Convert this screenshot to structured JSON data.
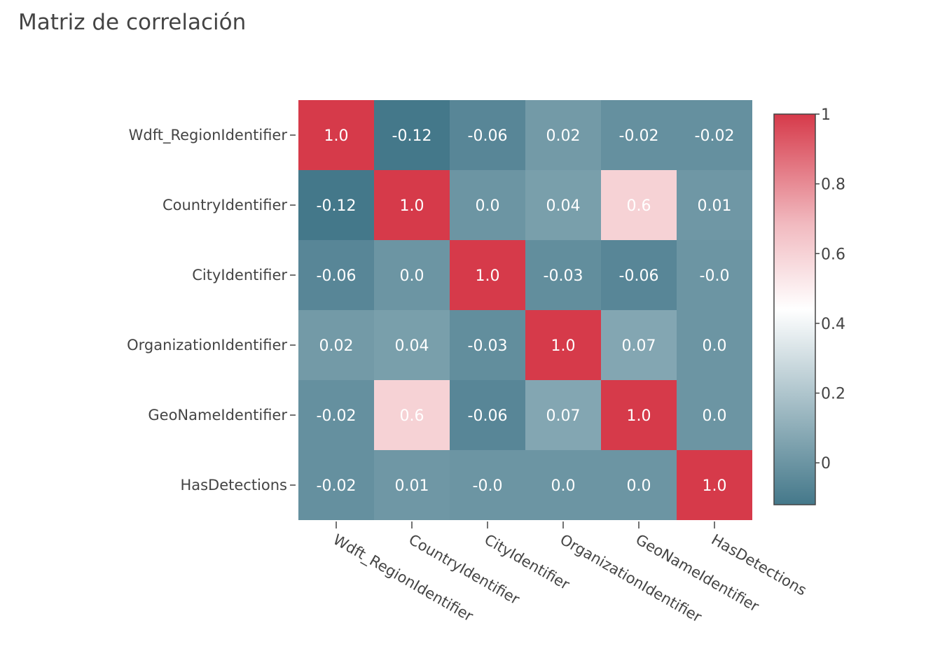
{
  "chart_data": {
    "type": "heatmap",
    "title": "Matriz de correlación",
    "x_categories": [
      "Wdft_RegionIdentifier",
      "CountryIdentifier",
      "CityIdentifier",
      "OrganizationIdentifier",
      "GeoNameIdentifier",
      "HasDetections"
    ],
    "y_categories": [
      "Wdft_RegionIdentifier",
      "CountryIdentifier",
      "CityIdentifier",
      "OrganizationIdentifier",
      "GeoNameIdentifier",
      "HasDetections"
    ],
    "values": [
      [
        1.0,
        -0.12,
        -0.06,
        0.02,
        -0.02,
        -0.02
      ],
      [
        -0.12,
        1.0,
        0.0,
        0.04,
        0.6,
        0.01
      ],
      [
        -0.06,
        0.0,
        1.0,
        -0.03,
        -0.06,
        -0.0
      ],
      [
        0.02,
        0.04,
        -0.03,
        1.0,
        0.07,
        0.0
      ],
      [
        -0.02,
        0.6,
        -0.06,
        0.07,
        1.0,
        0.0
      ],
      [
        -0.02,
        0.01,
        -0.0,
        0.0,
        0.0,
        1.0
      ]
    ],
    "cell_labels": [
      [
        "1.0",
        "-0.12",
        "-0.06",
        "0.02",
        "-0.02",
        "-0.02"
      ],
      [
        "-0.12",
        "1.0",
        "0.0",
        "0.04",
        "0.6",
        "0.01"
      ],
      [
        "-0.06",
        "0.0",
        "1.0",
        "-0.03",
        "-0.06",
        "-0.0"
      ],
      [
        "0.02",
        "0.04",
        "-0.03",
        "1.0",
        "0.07",
        "0.0"
      ],
      [
        "-0.02",
        "0.6",
        "-0.06",
        "0.07",
        "1.0",
        "0.0"
      ],
      [
        "-0.02",
        "0.01",
        "-0.0",
        "0.0",
        "0.0",
        "1.0"
      ]
    ],
    "colorscale": {
      "min": -0.12,
      "max": 1.0,
      "stops": [
        [
          0.0,
          "#44788a"
        ],
        [
          0.5,
          "#ffffff"
        ],
        [
          0.72,
          "#f1b9bf"
        ],
        [
          1.0,
          "#d63a4a"
        ]
      ]
    },
    "colorbar": {
      "ticks": [
        0,
        0.2,
        0.4,
        0.6,
        0.8,
        1
      ],
      "tick_labels": [
        "0",
        "0.2",
        "0.4",
        "0.6",
        "0.8",
        "1"
      ],
      "placement": "right"
    }
  }
}
